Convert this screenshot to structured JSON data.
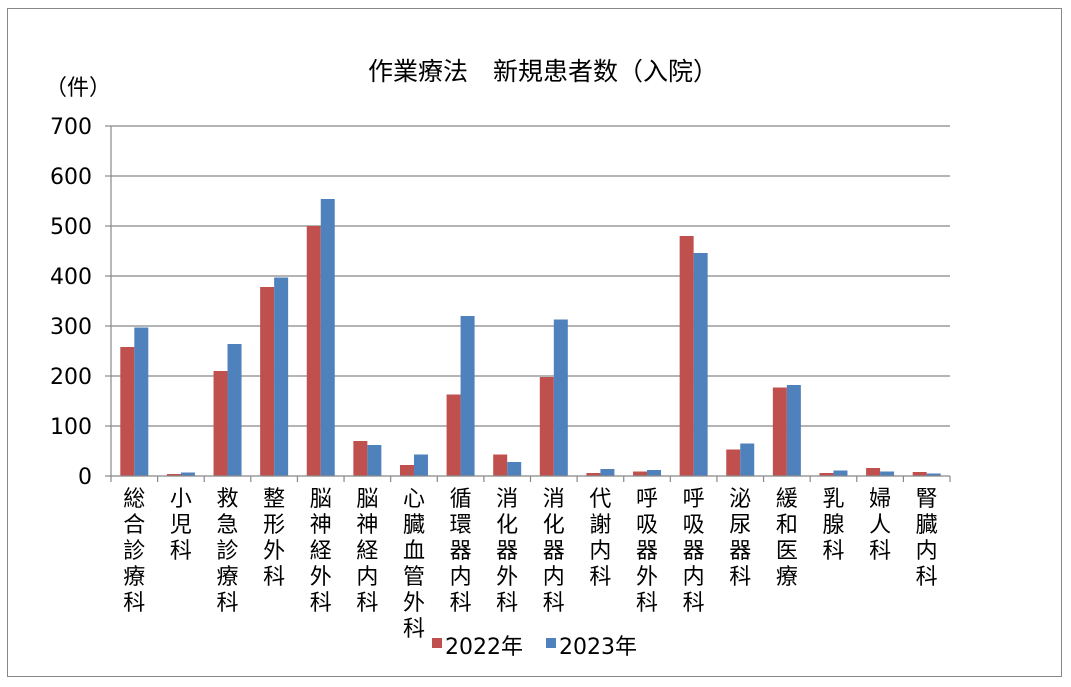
{
  "chart_data": {
    "type": "bar",
    "title": "作業療法　新規患者数（入院）",
    "ylabel": "（件）",
    "ylim": [
      0,
      700
    ],
    "yticks": [
      0,
      100,
      200,
      300,
      400,
      500,
      600,
      700
    ],
    "grid": true,
    "legend_position": "bottom",
    "categories": [
      "総合診療科",
      "小児科",
      "救急診療科",
      "整形外科",
      "脳神経外科",
      "脳神経内科",
      "心臓血管外科",
      "循環器内科",
      "消化器外科",
      "消化器内科",
      "代謝内科",
      "呼吸器外科",
      "呼吸器内科",
      "泌尿器科",
      "緩和医療",
      "乳腺科",
      "婦人科",
      "腎臓内科"
    ],
    "series": [
      {
        "name": "2022年",
        "color": "#c0504d",
        "values": [
          258,
          4,
          210,
          378,
          500,
          70,
          22,
          163,
          43,
          198,
          6,
          9,
          480,
          53,
          177,
          6,
          16,
          8
        ]
      },
      {
        "name": "2023年",
        "color": "#4f81bd",
        "values": [
          297,
          7,
          264,
          397,
          554,
          62,
          43,
          320,
          28,
          313,
          14,
          12,
          446,
          65,
          182,
          11,
          9,
          5
        ]
      }
    ]
  }
}
